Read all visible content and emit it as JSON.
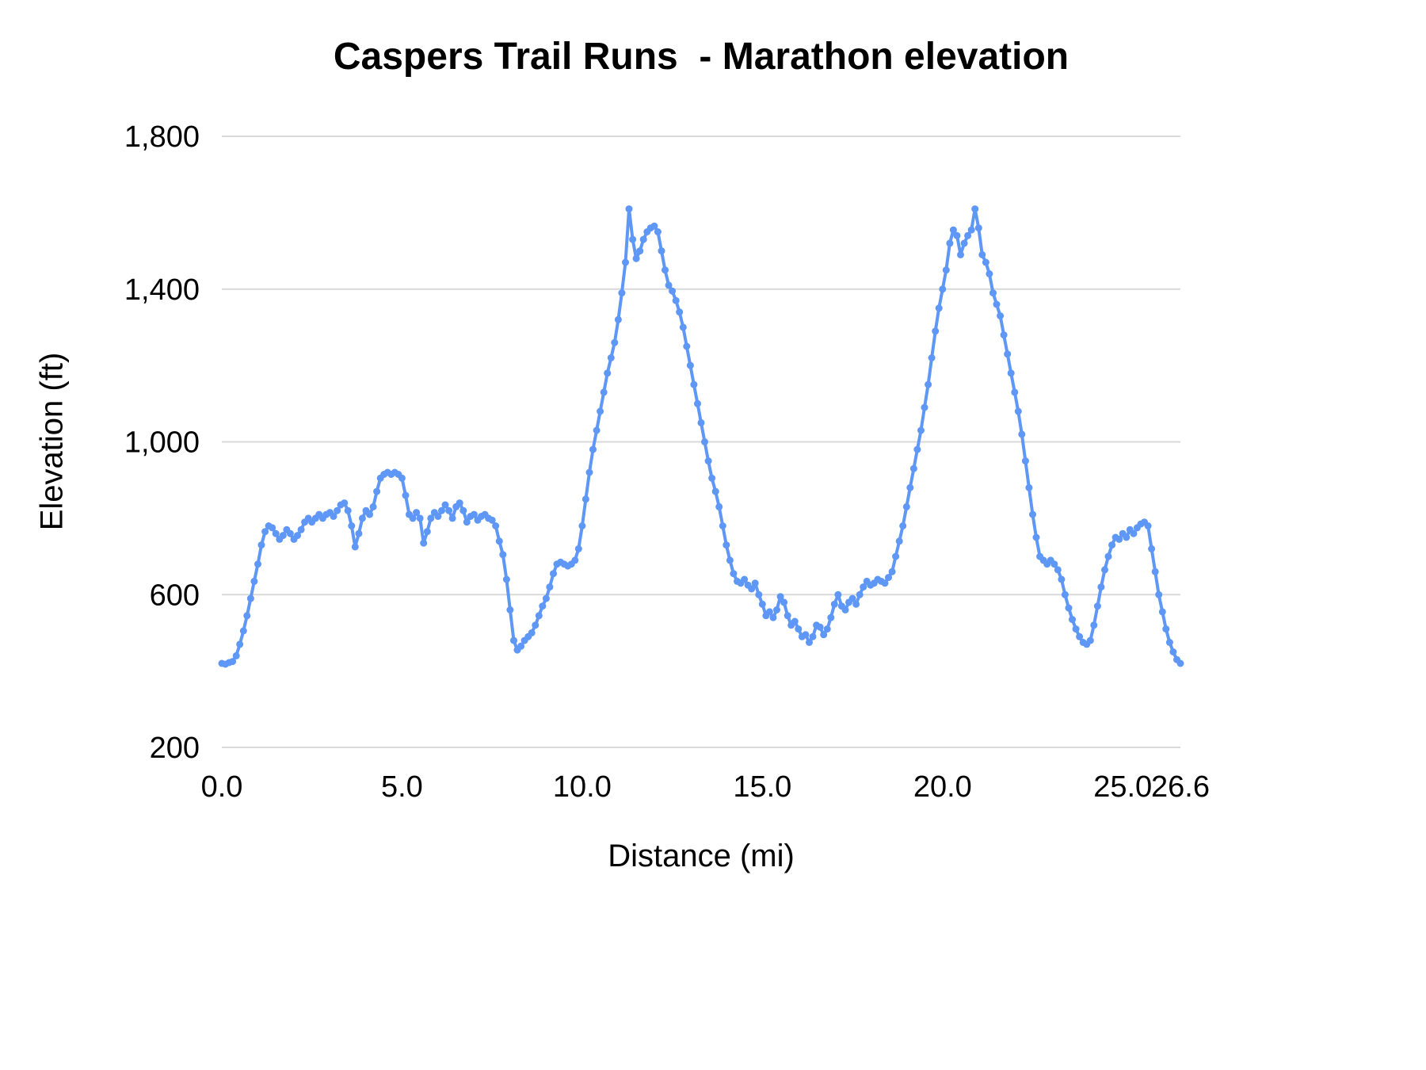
{
  "chart_data": {
    "type": "line",
    "title": "Caspers Trail Runs  - Marathon elevation",
    "xlabel": "Distance (mi)",
    "ylabel": "Elevation (ft)",
    "xlim": [
      0,
      26.6
    ],
    "ylim": [
      200,
      1800
    ],
    "xticks": [
      0,
      5,
      10,
      15,
      20,
      25,
      26.6
    ],
    "xtick_labels": [
      "0.0",
      "5.0",
      "10.0",
      "15.0",
      "20.0",
      "25.0",
      "26.6"
    ],
    "yticks": [
      200,
      600,
      1000,
      1400,
      1800
    ],
    "ytick_labels": [
      "200",
      "600",
      "1,000",
      "1,400",
      "1,800"
    ],
    "grid": "horizontal",
    "legend": "none",
    "line_color": "#5e97f6",
    "gridline_color": "#d9d9d9",
    "text_color": "#000000",
    "x_units": "mi",
    "y_units": "ft",
    "x_start": 0.0,
    "x_step": 0.1,
    "elevations": [
      420,
      418,
      422,
      425,
      440,
      470,
      505,
      545,
      590,
      635,
      680,
      730,
      765,
      780,
      775,
      760,
      745,
      755,
      770,
      760,
      745,
      755,
      770,
      790,
      800,
      790,
      800,
      810,
      800,
      810,
      815,
      805,
      820,
      835,
      840,
      820,
      780,
      725,
      760,
      800,
      820,
      810,
      830,
      870,
      905,
      915,
      920,
      915,
      920,
      915,
      905,
      860,
      810,
      800,
      815,
      800,
      735,
      765,
      800,
      815,
      805,
      820,
      835,
      820,
      800,
      830,
      840,
      820,
      790,
      805,
      810,
      795,
      805,
      810,
      800,
      795,
      780,
      740,
      705,
      640,
      560,
      480,
      455,
      465,
      480,
      490,
      500,
      520,
      545,
      570,
      590,
      620,
      655,
      680,
      685,
      680,
      675,
      680,
      690,
      720,
      780,
      850,
      920,
      980,
      1030,
      1080,
      1130,
      1180,
      1220,
      1260,
      1320,
      1390,
      1470,
      1610,
      1530,
      1480,
      1500,
      1530,
      1550,
      1560,
      1565,
      1550,
      1500,
      1450,
      1410,
      1395,
      1370,
      1340,
      1300,
      1250,
      1200,
      1150,
      1100,
      1050,
      1000,
      950,
      905,
      870,
      830,
      780,
      730,
      690,
      655,
      635,
      630,
      640,
      625,
      615,
      630,
      600,
      575,
      545,
      555,
      540,
      560,
      595,
      580,
      545,
      520,
      530,
      510,
      490,
      495,
      475,
      490,
      520,
      515,
      495,
      510,
      540,
      575,
      600,
      570,
      560,
      580,
      590,
      575,
      600,
      620,
      635,
      625,
      630,
      640,
      635,
      630,
      645,
      660,
      700,
      740,
      780,
      830,
      880,
      930,
      980,
      1030,
      1090,
      1150,
      1220,
      1290,
      1350,
      1400,
      1450,
      1520,
      1555,
      1540,
      1490,
      1520,
      1540,
      1555,
      1610,
      1560,
      1490,
      1470,
      1440,
      1390,
      1360,
      1330,
      1280,
      1230,
      1180,
      1130,
      1080,
      1020,
      950,
      880,
      810,
      750,
      700,
      690,
      680,
      690,
      680,
      665,
      640,
      600,
      565,
      535,
      510,
      490,
      475,
      470,
      480,
      520,
      570,
      620,
      665,
      700,
      730,
      750,
      745,
      760,
      750,
      770,
      760,
      775,
      785,
      790,
      780,
      720,
      660,
      600,
      555,
      510,
      475,
      450,
      430,
      420
    ]
  }
}
